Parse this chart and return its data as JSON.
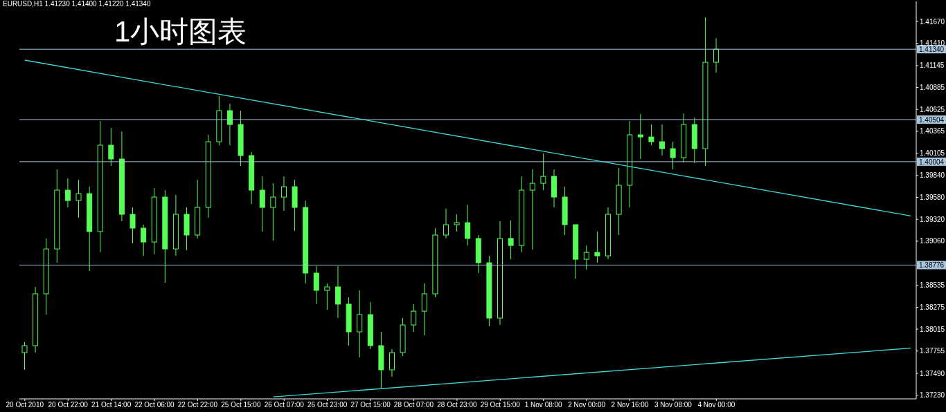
{
  "chart_data": {
    "type": "candlestick",
    "title": "1小时图表",
    "subtitle": "EURUSD,H1  1.41230 1.41400 1.41220 1.41340",
    "color": "#55ff55",
    "categories": [
      "20 Oct 2010",
      null,
      null,
      null,
      "20 Oct 22:00",
      null,
      null,
      null,
      "21 Oct 14:00",
      null,
      null,
      null,
      "22 Oct 06:00",
      null,
      null,
      null,
      "22 Oct 22:00",
      null,
      null,
      null,
      "25 Oct 15:00",
      null,
      null,
      null,
      "26 Oct 07:00",
      null,
      null,
      null,
      "26 Oct 23:00",
      null,
      null,
      null,
      "27 Oct 15:00",
      null,
      null,
      null,
      "28 Oct 07:00",
      null,
      null,
      null,
      "28 Oct 23:00",
      null,
      null,
      null,
      "29 Oct 15:00",
      null,
      null,
      null,
      "1 Nov 08:00",
      null,
      null,
      null,
      "2 Nov 00:00",
      null,
      null,
      null,
      "2 Nov 16:00",
      null,
      null,
      null,
      "3 Nov 08:00",
      null,
      null,
      null,
      "4 Nov 00:00",
      null,
      null,
      null,
      null,
      null,
      null,
      null,
      null,
      null,
      null,
      null,
      null,
      null,
      null,
      null,
      null,
      null,
      null
    ],
    "ohlc": [
      [
        1.37737,
        1.3786,
        1.37532,
        1.37819
      ],
      [
        1.37819,
        1.38517,
        1.37737,
        1.38435
      ],
      [
        1.38435,
        1.39092,
        1.38188,
        1.38968
      ],
      [
        1.38968,
        1.39913,
        1.38804,
        1.39666
      ],
      [
        1.39666,
        1.39806,
        1.39461,
        1.39543
      ],
      [
        1.39543,
        1.39789,
        1.39338,
        1.39625
      ],
      [
        1.39625,
        1.39707,
        1.38706,
        1.39174
      ],
      [
        1.39174,
        1.40487,
        1.38927,
        1.402
      ],
      [
        1.402,
        1.40405,
        1.39954,
        1.40036
      ],
      [
        1.40036,
        1.40364,
        1.39297,
        1.39379
      ],
      [
        1.39379,
        1.39461,
        1.39034,
        1.39215
      ],
      [
        1.39215,
        1.39256,
        1.38886,
        1.3905
      ],
      [
        1.3905,
        1.39691,
        1.38903,
        1.39584
      ],
      [
        1.39584,
        1.39666,
        1.38566,
        1.38968
      ],
      [
        1.38968,
        1.39609,
        1.38886,
        1.39379
      ],
      [
        1.39379,
        1.39461,
        1.38952,
        1.39133
      ],
      [
        1.39133,
        1.39789,
        1.39092,
        1.39461
      ],
      [
        1.39461,
        1.40323,
        1.39338,
        1.40241
      ],
      [
        1.40241,
        1.40783,
        1.402,
        1.4061
      ],
      [
        1.4061,
        1.40692,
        1.402,
        1.40446
      ],
      [
        1.40446,
        1.4061,
        1.39954,
        1.40077
      ],
      [
        1.40077,
        1.40118,
        1.39502,
        1.39666
      ],
      [
        1.39666,
        1.3983,
        1.39174,
        1.39461
      ],
      [
        1.39461,
        1.39748,
        1.39067,
        1.39584
      ],
      [
        1.39584,
        1.3983,
        1.3942,
        1.39707
      ],
      [
        1.39707,
        1.39789,
        1.39182,
        1.39461
      ],
      [
        1.39461,
        1.39543,
        1.38558,
        1.38681
      ],
      [
        1.38681,
        1.38763,
        1.38312,
        1.38476
      ],
      [
        1.38476,
        1.38558,
        1.38246,
        1.38517
      ],
      [
        1.38517,
        1.38763,
        1.38147,
        1.38312
      ],
      [
        1.38312,
        1.38394,
        1.37819,
        1.37983
      ],
      [
        1.37983,
        1.38476,
        1.37679,
        1.38188
      ],
      [
        1.38188,
        1.38336,
        1.37778,
        1.37819
      ],
      [
        1.37819,
        1.37983,
        1.37318,
        1.37532
      ],
      [
        1.37532,
        1.37778,
        1.3745,
        1.37737
      ],
      [
        1.37737,
        1.38147,
        1.37696,
        1.38065
      ],
      [
        1.38065,
        1.38312,
        1.37983,
        1.38229
      ],
      [
        1.38229,
        1.38558,
        1.37942,
        1.38435
      ],
      [
        1.38435,
        1.39215,
        1.38394,
        1.39133
      ],
      [
        1.39133,
        1.39445,
        1.39092,
        1.39256
      ],
      [
        1.39256,
        1.39379,
        1.39174,
        1.3928
      ],
      [
        1.3928,
        1.39494,
        1.39009,
        1.39092
      ],
      [
        1.39092,
        1.39133,
        1.38681,
        1.38804
      ],
      [
        1.38804,
        1.38886,
        1.38049,
        1.38147
      ],
      [
        1.38147,
        1.39297,
        1.38065,
        1.39092
      ],
      [
        1.39092,
        1.39305,
        1.38845,
        1.39009
      ],
      [
        1.39009,
        1.3983,
        1.38927,
        1.39666
      ],
      [
        1.39666,
        1.39913,
        1.3896,
        1.39748
      ],
      [
        1.39748,
        1.40101,
        1.39666,
        1.3983
      ],
      [
        1.3983,
        1.39913,
        1.39461,
        1.39584
      ],
      [
        1.39584,
        1.39707,
        1.39133,
        1.39256
      ],
      [
        1.39256,
        1.39256,
        1.38615,
        1.38845
      ],
      [
        1.38845,
        1.39009,
        1.38722,
        1.38927
      ],
      [
        1.38927,
        1.39174,
        1.38804,
        1.38886
      ],
      [
        1.38886,
        1.39461,
        1.38845,
        1.39379
      ],
      [
        1.39379,
        1.39929,
        1.39133,
        1.39724
      ],
      [
        1.39724,
        1.40487,
        1.39461,
        1.40323
      ],
      [
        1.40323,
        1.40569,
        1.40036,
        1.40298
      ],
      [
        1.40298,
        1.40446,
        1.402,
        1.40241
      ],
      [
        1.40241,
        1.40446,
        1.40077,
        1.40159
      ],
      [
        1.40159,
        1.40241,
        1.39913,
        1.40052
      ],
      [
        1.40052,
        1.40578,
        1.39995,
        1.40446
      ],
      [
        1.40446,
        1.40528,
        1.39986,
        1.40159
      ],
      [
        1.40159,
        1.41719,
        1.39954,
        1.41185
      ],
      [
        1.41185,
        1.41472,
        1.41062,
        1.4134
      ],
      null,
      null,
      null,
      null,
      null,
      null,
      null,
      null,
      null,
      null,
      null,
      null,
      null,
      null,
      null,
      null,
      null,
      null
    ],
    "series": [
      {
        "type": "line",
        "color": "#3fd6d6",
        "values": [
          1.4121,
          null,
          null,
          null,
          null,
          null,
          null,
          null,
          null,
          null,
          null,
          null,
          null,
          null,
          null,
          null,
          null,
          null,
          null,
          null,
          null,
          null,
          null,
          null,
          null,
          null,
          null,
          null,
          null,
          null,
          null,
          null,
          null,
          null,
          null,
          null,
          null,
          null,
          null,
          null,
          null,
          null,
          null,
          null,
          null,
          null,
          null,
          null,
          null,
          null,
          null,
          null,
          null,
          null,
          null,
          null,
          null,
          null,
          null,
          null,
          null,
          null,
          null,
          null,
          null,
          null,
          null,
          null,
          null,
          null,
          null,
          null,
          null,
          null,
          null,
          null,
          null,
          null,
          null,
          null,
          null,
          null,
          1.3936
        ]
      },
      {
        "type": "line",
        "color": "#3fd6d6",
        "values": [
          null,
          null,
          null,
          null,
          null,
          null,
          null,
          null,
          null,
          null,
          null,
          null,
          null,
          null,
          null,
          null,
          null,
          null,
          null,
          null,
          null,
          null,
          null,
          1.3721,
          null,
          null,
          null,
          null,
          null,
          null,
          null,
          null,
          null,
          null,
          null,
          null,
          null,
          null,
          null,
          null,
          null,
          null,
          null,
          null,
          null,
          null,
          null,
          null,
          null,
          null,
          null,
          null,
          null,
          null,
          null,
          null,
          null,
          null,
          null,
          null,
          null,
          null,
          null,
          null,
          null,
          null,
          null,
          null,
          null,
          null,
          null,
          null,
          null,
          null,
          null,
          null,
          null,
          null,
          null,
          null,
          null,
          null,
          1.3779
        ]
      }
    ],
    "ylim": [
      1.37187,
      1.41908
    ],
    "yticks": [
      {
        "value": 1.3723,
        "label": "1.37230"
      },
      {
        "value": 1.3749,
        "label": "1.37490"
      },
      {
        "value": 1.37755,
        "label": "1.37755"
      },
      {
        "value": 1.38015,
        "label": "1.38015"
      },
      {
        "value": 1.38275,
        "label": "1.38275"
      },
      {
        "value": 1.38535,
        "label": "1.38535"
      },
      {
        "value": 1.3906,
        "label": "1.39060"
      },
      {
        "value": 1.3932,
        "label": "1.39320"
      },
      {
        "value": 1.3958,
        "label": "1.39580"
      },
      {
        "value": 1.3984,
        "label": "1.39840"
      },
      {
        "value": 1.40105,
        "label": "1.40105"
      },
      {
        "value": 1.40365,
        "label": "1.40365"
      },
      {
        "value": 1.40625,
        "label": "1.40625"
      },
      {
        "value": 1.40885,
        "label": "1.40885"
      },
      {
        "value": 1.41145,
        "label": "1.41145"
      },
      {
        "value": 1.4141,
        "label": "1.41410"
      },
      {
        "value": 1.4167,
        "label": "1.41670"
      }
    ],
    "ref_lines": [
      {
        "axis": "y",
        "value": 1.4134,
        "label": "1.41340",
        "color": "#a9c6df"
      },
      {
        "axis": "y",
        "value": 1.40504,
        "label": "1.40504",
        "color": "#a9c6df"
      },
      {
        "axis": "y",
        "value": 1.40004,
        "label": "1.40004",
        "color": "#a9c6df"
      },
      {
        "axis": "y",
        "value": 1.38776,
        "label": "1.38776",
        "color": "#a9c6df"
      }
    ]
  }
}
